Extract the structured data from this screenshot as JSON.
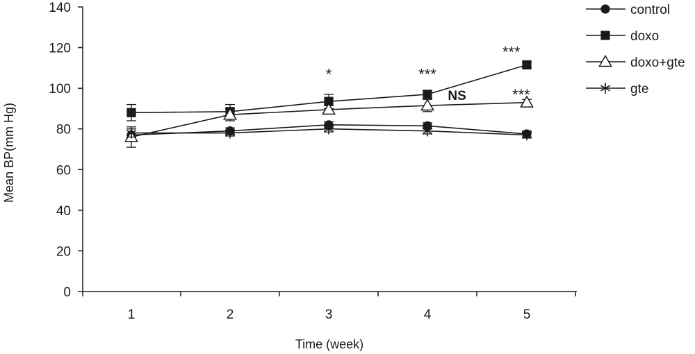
{
  "chart_data": {
    "type": "line",
    "xlabel": "Time (week)",
    "ylabel": "Mean BP(mm Hg)",
    "x": [
      1,
      2,
      3,
      4,
      5
    ],
    "ylim": [
      0,
      140
    ],
    "yticks": [
      0,
      20,
      40,
      60,
      80,
      100,
      120,
      140
    ],
    "grid": false,
    "legend_position": "top-right",
    "series": [
      {
        "name": "control",
        "marker": "circle",
        "values": [
          77,
          79,
          82,
          81.5,
          77.5
        ],
        "errors": [
          3,
          1.5,
          1.5,
          1.5,
          1.5
        ]
      },
      {
        "name": "doxo",
        "marker": "square",
        "values": [
          88,
          88.5,
          93.5,
          97,
          111.5
        ],
        "errors": [
          4,
          3.5,
          3.5,
          2,
          1.5
        ]
      },
      {
        "name": "doxo+gte",
        "marker": "triangle-open",
        "values": [
          76,
          87,
          89.5,
          91.5,
          93
        ],
        "errors": [
          5,
          3,
          2,
          3,
          1.5
        ]
      },
      {
        "name": "gte",
        "marker": "asterisk",
        "values": [
          78,
          78,
          80,
          79,
          77
        ],
        "errors": [
          2,
          1.5,
          1.5,
          1.5,
          1.5
        ]
      }
    ],
    "annotations": [
      {
        "text": "*",
        "x": 3,
        "y": 107,
        "style": "normal"
      },
      {
        "text": "***",
        "x": 4,
        "y": 107,
        "style": "normal"
      },
      {
        "text": "NS",
        "x": 4.3,
        "y": 97,
        "style": "bold"
      },
      {
        "text": "***",
        "x": 4.85,
        "y": 118,
        "style": "normal"
      },
      {
        "text": "***",
        "x": 4.95,
        "y": 97,
        "style": "normal"
      }
    ]
  }
}
